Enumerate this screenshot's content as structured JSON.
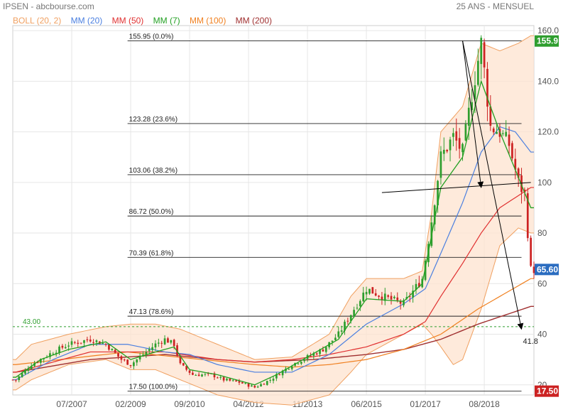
{
  "header": {
    "left": "IPSEN - abcbourse.com",
    "right": "25 ANS - MENSUEL"
  },
  "legend": [
    {
      "label": "BOLL (20, 2)",
      "color": "#f0a060"
    },
    {
      "label": "MM (20)",
      "color": "#4a7fe0"
    },
    {
      "label": "MM (50)",
      "color": "#e03030"
    },
    {
      "label": "MM (7)",
      "color": "#22a022"
    },
    {
      "label": "MM (100)",
      "color": "#f08020"
    },
    {
      "label": "MM (200)",
      "color": "#a03030"
    }
  ],
  "chart_data": {
    "type": "candlestick",
    "title": "",
    "x_ticks": [
      "07/2007",
      "02/2009",
      "09/2010",
      "04/2012",
      "11/2013",
      "06/2015",
      "01/2017",
      "08/2018"
    ],
    "y_ticks": [
      20,
      40,
      60,
      80,
      100,
      "120.0",
      "140.0",
      "160.0"
    ],
    "ylim": [
      16,
      162
    ],
    "fibonacci_levels": [
      {
        "value": 155.95,
        "label": "155.95  (0.0%)"
      },
      {
        "value": 123.28,
        "label": "123.28  (23.6%)"
      },
      {
        "value": 103.06,
        "label": "103.06  (38.2%)"
      },
      {
        "value": 86.72,
        "label": "86.72  (50.0%)"
      },
      {
        "value": 70.39,
        "label": "70.39  (61.8%)"
      },
      {
        "value": 47.13,
        "label": "47.13  (78.6%)"
      },
      {
        "value": 17.5,
        "label": "17.50  (100.0%)"
      }
    ],
    "reference_line": {
      "value": 43.0,
      "label": "43.00"
    },
    "price_badges": [
      {
        "value": 155.9,
        "label": "155.9",
        "color": "#2e9e2e"
      },
      {
        "value": 65.6,
        "label": "65.60",
        "color": "#2a6cc0"
      },
      {
        "value": 17.5,
        "label": "17.50",
        "color": "#cc2222"
      }
    ],
    "annotation_target": {
      "value": 41.8,
      "label": "41.8"
    },
    "trendline": {
      "from": [
        "2015-11",
        96
      ],
      "to": [
        "2019-11",
        100
      ]
    },
    "arrow_long": {
      "from": [
        "2018-01",
        156
      ],
      "to": [
        "2019-08",
        42
      ]
    },
    "arrow_short": {
      "from": [
        "2018-01",
        156
      ],
      "to": [
        "2018-07",
        98
      ]
    },
    "series_anchors": {
      "close": [
        [
          "2006-01",
          22
        ],
        [
          "2006-06",
          28
        ],
        [
          "2007-01",
          33
        ],
        [
          "2007-06",
          36
        ],
        [
          "2008-01",
          38
        ],
        [
          "2008-06",
          36
        ],
        [
          "2008-11",
          30
        ],
        [
          "2009-02",
          28
        ],
        [
          "2009-06",
          32
        ],
        [
          "2009-10",
          36
        ],
        [
          "2010-01",
          38
        ],
        [
          "2010-04",
          36
        ],
        [
          "2010-06",
          28
        ],
        [
          "2010-10",
          24
        ],
        [
          "2011-04",
          24
        ],
        [
          "2011-08",
          22
        ],
        [
          "2012-01",
          21
        ],
        [
          "2012-06",
          19
        ],
        [
          "2012-11",
          22
        ],
        [
          "2013-06",
          28
        ],
        [
          "2013-11",
          31
        ],
        [
          "2014-04",
          34
        ],
        [
          "2014-09",
          40
        ],
        [
          "2015-02",
          50
        ],
        [
          "2015-06",
          58
        ],
        [
          "2015-11",
          55
        ],
        [
          "2016-06",
          52
        ],
        [
          "2016-12",
          62
        ],
        [
          "2017-03",
          85
        ],
        [
          "2017-06",
          110
        ],
        [
          "2017-10",
          118
        ],
        [
          "2018-01",
          112
        ],
        [
          "2018-04",
          135
        ],
        [
          "2018-07",
          155
        ],
        [
          "2018-10",
          122
        ],
        [
          "2019-01",
          120
        ],
        [
          "2019-04",
          115
        ],
        [
          "2019-07",
          100
        ],
        [
          "2019-09",
          95
        ],
        [
          "2019-11",
          65.6
        ]
      ],
      "mm7": [
        [
          "2006-01",
          23
        ],
        [
          "2006-09",
          30
        ],
        [
          "2007-06",
          34
        ],
        [
          "2008-06",
          37
        ],
        [
          "2009-02",
          30
        ],
        [
          "2009-10",
          33
        ],
        [
          "2010-04",
          35
        ],
        [
          "2010-09",
          26
        ],
        [
          "2011-06",
          24
        ],
        [
          "2012-06",
          20
        ],
        [
          "2013-01",
          24
        ],
        [
          "2013-11",
          31
        ],
        [
          "2014-09",
          38
        ],
        [
          "2015-06",
          54
        ],
        [
          "2016-06",
          53
        ],
        [
          "2016-12",
          60
        ],
        [
          "2017-06",
          98
        ],
        [
          "2018-01",
          110
        ],
        [
          "2018-07",
          140
        ],
        [
          "2019-01",
          120
        ],
        [
          "2019-06",
          105
        ],
        [
          "2019-11",
          90
        ]
      ],
      "mm20": [
        [
          "2006-01",
          22
        ],
        [
          "2007-01",
          30
        ],
        [
          "2008-01",
          36
        ],
        [
          "2009-01",
          36
        ],
        [
          "2010-01",
          33
        ],
        [
          "2010-09",
          32
        ],
        [
          "2011-06",
          28
        ],
        [
          "2012-06",
          25
        ],
        [
          "2013-06",
          25
        ],
        [
          "2014-06",
          32
        ],
        [
          "2015-06",
          44
        ],
        [
          "2016-06",
          52
        ],
        [
          "2017-01",
          58
        ],
        [
          "2017-06",
          72
        ],
        [
          "2018-01",
          92
        ],
        [
          "2018-07",
          112
        ],
        [
          "2019-01",
          122
        ],
        [
          "2019-06",
          120
        ],
        [
          "2019-11",
          112
        ]
      ],
      "mm50": [
        [
          "2006-01",
          25
        ],
        [
          "2008-01",
          33
        ],
        [
          "2010-01",
          33
        ],
        [
          "2011-06",
          30
        ],
        [
          "2012-06",
          29
        ],
        [
          "2013-06",
          30
        ],
        [
          "2014-06",
          32
        ],
        [
          "2015-06",
          35
        ],
        [
          "2016-06",
          40
        ],
        [
          "2017-01",
          45
        ],
        [
          "2017-06",
          55
        ],
        [
          "2018-01",
          68
        ],
        [
          "2018-07",
          80
        ],
        [
          "2019-01",
          90
        ],
        [
          "2019-11",
          98
        ]
      ],
      "mm100": [
        [
          "2006-01",
          28
        ],
        [
          "2009-01",
          33
        ],
        [
          "2011-01",
          30
        ],
        [
          "2012-06",
          28
        ],
        [
          "2013-06",
          27
        ],
        [
          "2014-06",
          28
        ],
        [
          "2015-06",
          30
        ],
        [
          "2016-06",
          34
        ],
        [
          "2017-06",
          40
        ],
        [
          "2018-06",
          50
        ],
        [
          "2019-11",
          62
        ]
      ],
      "mm200": [
        [
          "2006-01",
          25
        ],
        [
          "2008-01",
          30
        ],
        [
          "2010-01",
          32
        ],
        [
          "2011-06",
          30
        ],
        [
          "2012-06",
          29
        ],
        [
          "2014-01",
          30
        ],
        [
          "2015-06",
          32
        ],
        [
          "2016-06",
          34
        ],
        [
          "2017-06",
          38
        ],
        [
          "2018-06",
          44
        ],
        [
          "2019-11",
          51
        ]
      ],
      "boll_upper": [
        [
          "2006-01",
          30
        ],
        [
          "2006-06",
          36
        ],
        [
          "2007-06",
          40
        ],
        [
          "2008-06",
          43
        ],
        [
          "2009-02",
          44
        ],
        [
          "2009-10",
          44
        ],
        [
          "2010-06",
          42
        ],
        [
          "2011-06",
          36
        ],
        [
          "2012-06",
          30
        ],
        [
          "2013-06",
          31
        ],
        [
          "2014-06",
          40
        ],
        [
          "2015-01",
          55
        ],
        [
          "2015-06",
          62
        ],
        [
          "2016-06",
          62
        ],
        [
          "2016-12",
          65
        ],
        [
          "2017-03",
          88
        ],
        [
          "2017-06",
          120
        ],
        [
          "2018-01",
          130
        ],
        [
          "2018-07",
          155
        ],
        [
          "2019-01",
          152
        ],
        [
          "2019-07",
          155
        ],
        [
          "2019-11",
          158
        ]
      ],
      "boll_lower": [
        [
          "2006-01",
          18
        ],
        [
          "2006-06",
          22
        ],
        [
          "2007-06",
          28
        ],
        [
          "2008-06",
          30
        ],
        [
          "2009-02",
          26
        ],
        [
          "2009-10",
          26
        ],
        [
          "2010-06",
          22
        ],
        [
          "2011-06",
          16
        ],
        [
          "2012-06",
          13
        ],
        [
          "2013-06",
          12
        ],
        [
          "2014-06",
          16
        ],
        [
          "2015-01",
          25
        ],
        [
          "2015-06",
          32
        ],
        [
          "2016-06",
          40
        ],
        [
          "2016-12",
          44
        ],
        [
          "2017-03",
          40
        ],
        [
          "2017-06",
          35
        ],
        [
          "2017-10",
          28
        ],
        [
          "2018-01",
          30
        ],
        [
          "2018-07",
          50
        ],
        [
          "2019-01",
          75
        ],
        [
          "2019-07",
          82
        ],
        [
          "2019-11",
          80
        ]
      ]
    }
  }
}
